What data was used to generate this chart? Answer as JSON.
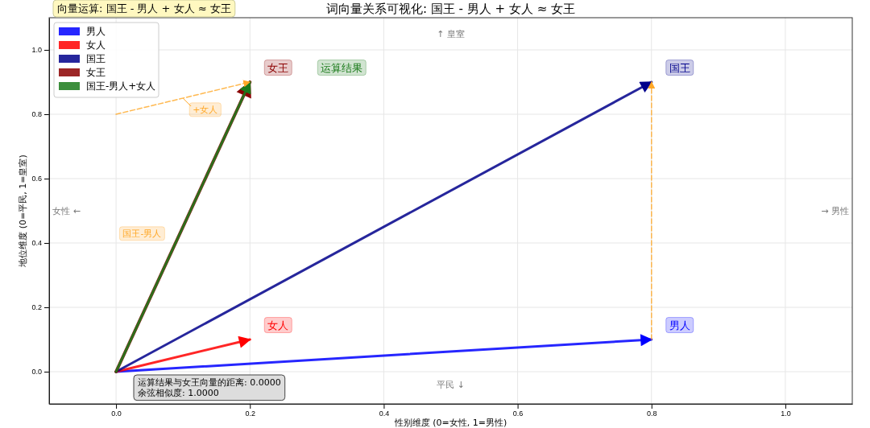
{
  "chart_data": {
    "type": "line",
    "title": "词向量关系可视化: 国王 - 男人 + 女人 ≈ 女王",
    "xlabel": "性别维度 (0=女性, 1=男性)",
    "ylabel": "地位维度 (0=平民, 1=皇室)",
    "xlim": [
      -0.1,
      1.1
    ],
    "ylim": [
      -0.1,
      1.1
    ],
    "xticks": [
      {
        "value": 0,
        "label": "0.0"
      },
      0.2,
      0.4,
      0.6,
      0.8,
      {
        "value": 1,
        "label": "1.0"
      }
    ],
    "yticks": [
      {
        "value": 0,
        "label": "0.0"
      },
      0.2,
      0.4,
      0.6,
      0.8,
      {
        "value": 1,
        "label": "1.0"
      }
    ],
    "grid": true,
    "legend": "top left",
    "marker": "none",
    "series": [
      {
        "name": "男人",
        "color": "#0000ff",
        "x": [
          0,
          0.8
        ],
        "values": [
          0,
          0.1
        ]
      },
      {
        "name": "女人",
        "color": "#ff0000",
        "x": [
          0,
          0.2
        ],
        "values": [
          0,
          0.1
        ]
      },
      {
        "name": "国王",
        "color": "#00008b",
        "x": [
          0,
          0.8
        ],
        "values": [
          0,
          0.9
        ]
      },
      {
        "name": "女王",
        "color": "#8b0000",
        "x": [
          0,
          0.2
        ],
        "values": [
          0,
          0.9
        ]
      },
      {
        "name": "国王-男人+女人",
        "color": "#1a7a1a",
        "x": [
          0,
          0.2
        ],
        "values": [
          0,
          0.9
        ]
      },
      {
        "color": "#ffa726",
        "x": [
          0.8,
          0.8
        ],
        "values": [
          0.1,
          0.9
        ],
        "line_style": "dashed"
      },
      {
        "color": "#ffa726",
        "x": [
          0,
          0.2
        ],
        "values": [
          0.8,
          0.9
        ],
        "line_style": "dashed"
      }
    ],
    "annotations": [
      "向量运算: 国王 - 男人 + 女人 ≈ 女王",
      "运算结果与女王向量的距离: 0.0000\n余弦相似度: 1.0000",
      "↑ 皇室",
      "平民 ↓",
      "女性 ←",
      "→ 男性",
      "运算结果",
      "国王-男人",
      {
        "text": "男人",
        "x": 0.8,
        "y": 0.1
      },
      {
        "text": "女人",
        "x": 0.2,
        "y": 0.1
      },
      {
        "text": "国王",
        "x": 0.8,
        "y": 0.9
      },
      {
        "text": "女王",
        "x": 0.2,
        "y": 0.9
      },
      {
        "text": "+女人",
        "x": 0.1,
        "y": 0.85
      }
    ]
  }
}
